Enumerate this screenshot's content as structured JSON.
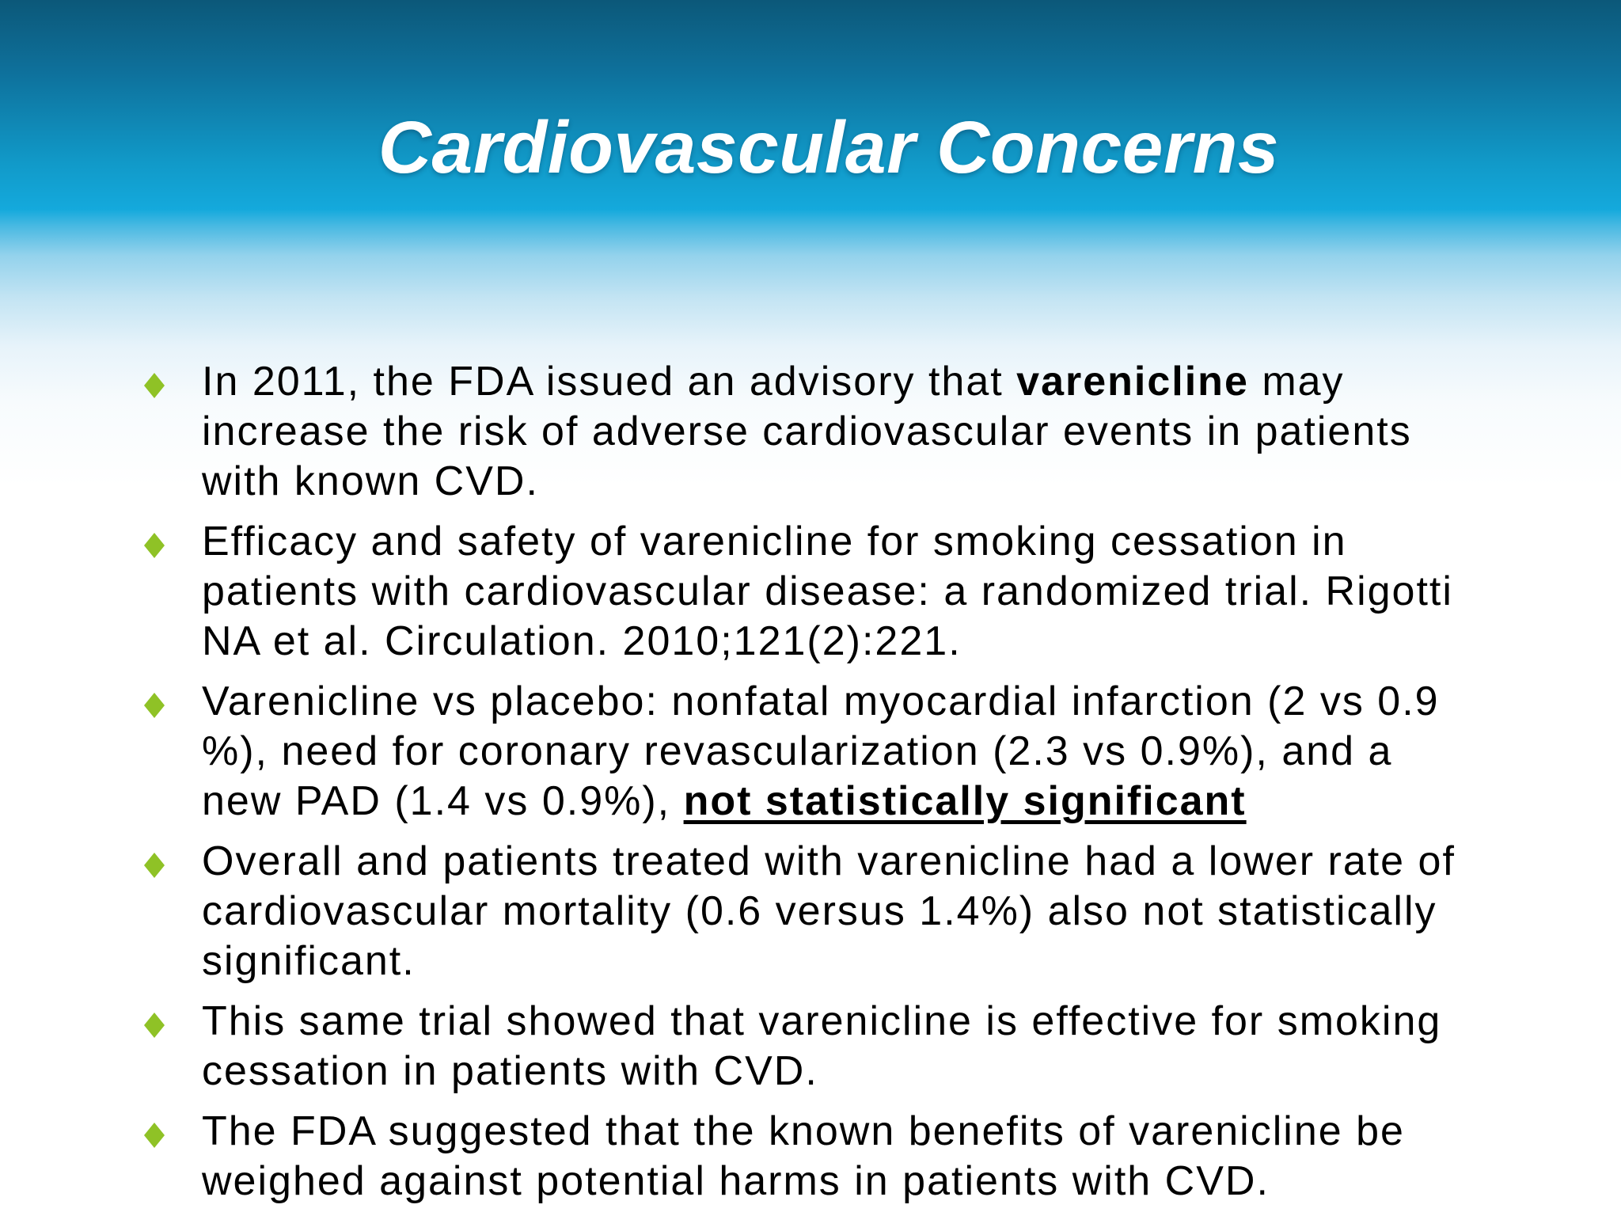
{
  "slide": {
    "title": "Cardiovascular Concerns",
    "colors": {
      "title_text": "#FFFFFF",
      "body_text": "#000000",
      "bullet_diamond": "#8FC226",
      "gradient_top": "#0C5879",
      "gradient_cyan_band": "#14A9DC",
      "gradient_bottom": "#FFFFFF"
    },
    "bullet_glyph": "diamond",
    "bullets": [
      {
        "segments": [
          {
            "text": "In 2011, the FDA issued an advisory that "
          },
          {
            "text": "varenicline",
            "bold": true
          },
          {
            "text": " may increase the risk of adverse cardiovascular events in patients with known CVD."
          }
        ]
      },
      {
        "segments": [
          {
            "text": "Efficacy and safety of varenicline for smoking cessation in patients with cardiovascular disease: a randomized trial. Rigotti NA et al. Circulation. 2010;121(2):221."
          }
        ]
      },
      {
        "segments": [
          {
            "text": "Varenicline vs placebo: nonfatal myocardial infarction (2 vs 0.9 %), need for coronary revascularization (2.3 vs 0.9%), and a new PAD (1.4 vs 0.9%), "
          },
          {
            "text": "not statistically significant",
            "bold": true,
            "underline": true
          }
        ]
      },
      {
        "segments": [
          {
            "text": "Overall and patients treated with varenicline had a lower rate of cardiovascular mortality (0.6 versus 1.4%) also not statistically significant."
          }
        ]
      },
      {
        "segments": [
          {
            "text": "This same trial showed that varenicline is effective for smoking cessation in patients with CVD."
          }
        ]
      },
      {
        "segments": [
          {
            "text": "The FDA suggested that the known benefits of varenicline be weighed against potential harms in patients with CVD."
          }
        ]
      }
    ]
  }
}
